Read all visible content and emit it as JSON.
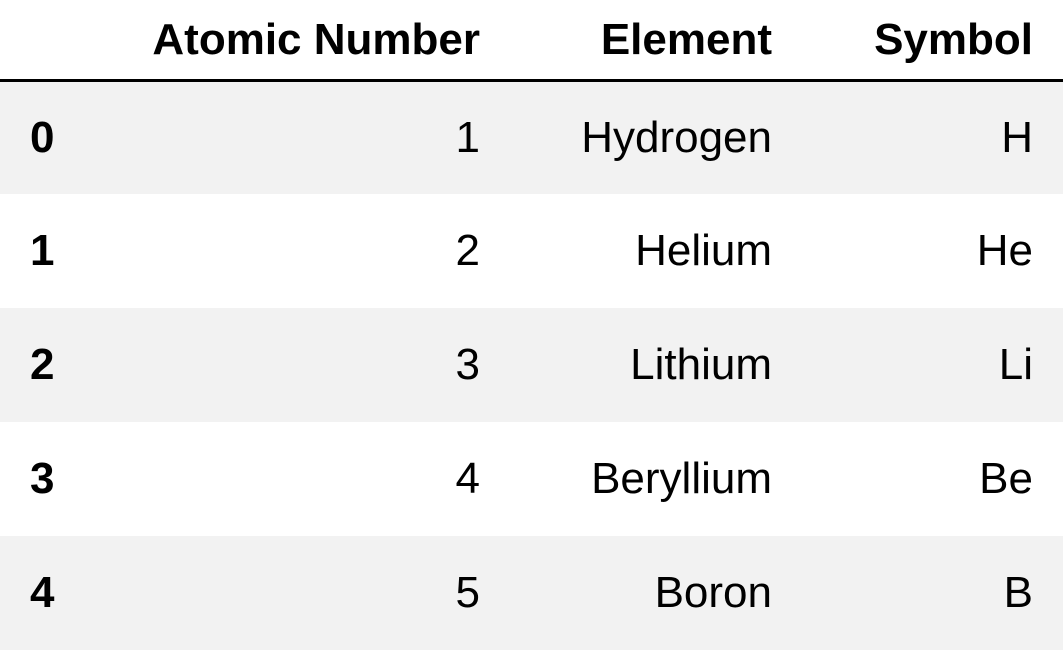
{
  "table": {
    "columns": [
      "Atomic Number",
      "Element",
      "Symbol"
    ],
    "rows": [
      {
        "index": "0",
        "atomic_number": "1",
        "element": "Hydrogen",
        "symbol": "H"
      },
      {
        "index": "1",
        "atomic_number": "2",
        "element": "Helium",
        "symbol": "He"
      },
      {
        "index": "2",
        "atomic_number": "3",
        "element": "Lithium",
        "symbol": "Li"
      },
      {
        "index": "3",
        "atomic_number": "4",
        "element": "Beryllium",
        "symbol": "Be"
      },
      {
        "index": "4",
        "atomic_number": "5",
        "element": "Boron",
        "symbol": "B"
      }
    ]
  },
  "colors": {
    "stripe": "#f2f2f2",
    "header_rule": "#000000",
    "text": "#000000"
  }
}
